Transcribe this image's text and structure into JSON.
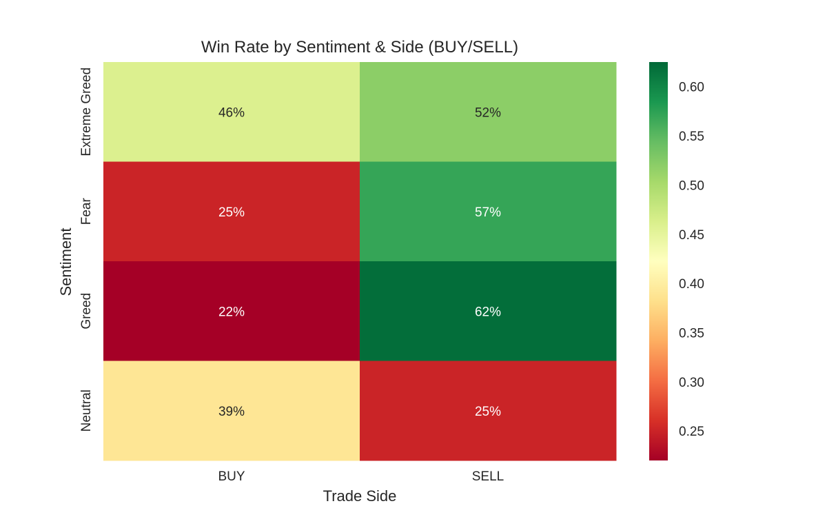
{
  "chart_data": {
    "type": "heatmap",
    "title": "Win Rate by Sentiment & Side (BUY/SELL)",
    "xlabel": "Trade Side",
    "ylabel": "Sentiment",
    "x_categories": [
      "BUY",
      "SELL"
    ],
    "y_categories": [
      "Extreme Greed",
      "Fear",
      "Greed",
      "Neutral"
    ],
    "values": [
      [
        0.46,
        0.52
      ],
      [
        0.25,
        0.57
      ],
      [
        0.22,
        0.62
      ],
      [
        0.39,
        0.25
      ]
    ],
    "cell_labels": [
      [
        "46%",
        "52%"
      ],
      [
        "25%",
        "57%"
      ],
      [
        "22%",
        "62%"
      ],
      [
        "39%",
        "25%"
      ]
    ],
    "colorbar": {
      "colormap": "RdYlGn",
      "range": [
        0.22,
        0.625
      ],
      "ticks": [
        0.25,
        0.3,
        0.35,
        0.4,
        0.45,
        0.5,
        0.55,
        0.6
      ],
      "tick_labels": [
        "0.25",
        "0.30",
        "0.35",
        "0.40",
        "0.45",
        "0.50",
        "0.55",
        "0.60"
      ]
    }
  }
}
